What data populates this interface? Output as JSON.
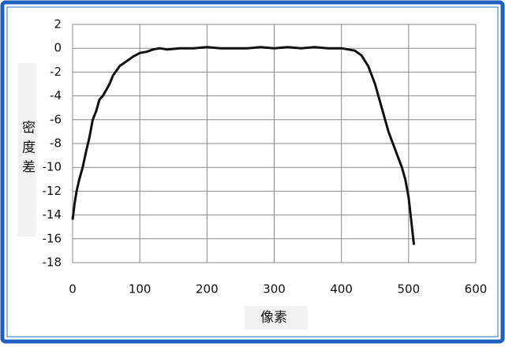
{
  "chart_data": {
    "type": "line",
    "x_label": "像素",
    "y_label": "密度差",
    "x": [
      0,
      3,
      6,
      10,
      15,
      20,
      25,
      30,
      35,
      40,
      45,
      50,
      55,
      60,
      65,
      70,
      80,
      90,
      100,
      110,
      120,
      130,
      140,
      160,
      180,
      200,
      220,
      240,
      260,
      280,
      300,
      320,
      340,
      360,
      380,
      400,
      410,
      420,
      430,
      440,
      450,
      460,
      470,
      480,
      490,
      495,
      500,
      504,
      508
    ],
    "values": [
      -14.4,
      -13,
      -12,
      -11,
      -10,
      -8.7,
      -7.5,
      -6,
      -5.3,
      -4.3,
      -4,
      -3.5,
      -3,
      -2.3,
      -1.9,
      -1.5,
      -1.1,
      -0.7,
      -0.4,
      -0.3,
      -0.1,
      0,
      -0.1,
      0,
      0,
      0.1,
      0,
      0,
      0,
      0.1,
      0,
      0.1,
      0,
      0.1,
      0,
      0,
      -0.1,
      -0.2,
      -0.6,
      -1.5,
      -3,
      -5,
      -7,
      -8.5,
      -10,
      -11,
      -12.5,
      -14.5,
      -16.5
    ],
    "color": "#111111",
    "xlim": [
      0,
      600
    ],
    "xticks": [
      0,
      100,
      200,
      300,
      400,
      500,
      600
    ],
    "ylim": [
      -18,
      2
    ],
    "yticks": [
      2,
      0,
      -2,
      -4,
      -6,
      -8,
      -10,
      -12,
      -14,
      -16,
      -18
    ],
    "grid": true
  }
}
